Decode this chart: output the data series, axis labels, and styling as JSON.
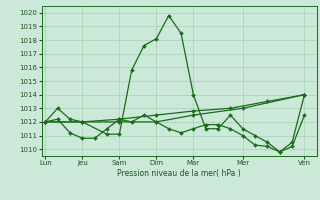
{
  "title": "Pression niveau de la mer( hPa )",
  "ylim": [
    1009.5,
    1020.5
  ],
  "yticks": [
    1010,
    1011,
    1012,
    1013,
    1014,
    1015,
    1016,
    1017,
    1018,
    1019,
    1020
  ],
  "xtick_labels": [
    "Lun",
    "Jeu",
    "Sam",
    "Dim",
    "Mar",
    "Mer",
    "Ven"
  ],
  "xtick_positions": [
    0,
    3,
    6,
    9,
    12,
    16,
    21
  ],
  "xlim": [
    -0.3,
    22
  ],
  "background_color": "#cce8d8",
  "grid_color": "#99ccaa",
  "line_color": "#1a6b1a",
  "line1_x": [
    0,
    1,
    2,
    3,
    5,
    6,
    7,
    8,
    9,
    10,
    11,
    12,
    13,
    14,
    15,
    16,
    17,
    18,
    19,
    20,
    21
  ],
  "line1_y": [
    1012,
    1013,
    1012.2,
    1012,
    1011.1,
    1011.1,
    1015.8,
    1017.6,
    1018.1,
    1019.8,
    1018.5,
    1014,
    1011.5,
    1011.5,
    1012.5,
    1011.5,
    1011,
    1010.5,
    1009.8,
    1010.5,
    1014
  ],
  "line2_x": [
    0,
    1,
    2,
    3,
    4,
    5,
    6,
    7,
    8,
    9,
    10,
    11,
    12,
    13,
    14,
    15,
    16,
    17,
    18,
    19,
    20,
    21
  ],
  "line2_y": [
    1012,
    1012.2,
    1011.2,
    1010.8,
    1010.8,
    1011.5,
    1012.2,
    1012,
    1012.5,
    1012,
    1011.5,
    1011.2,
    1011.5,
    1011.8,
    1011.8,
    1011.5,
    1011,
    1010.3,
    1010.2,
    1009.8,
    1010.2,
    1012.5
  ],
  "line3_x": [
    0,
    3,
    6,
    9,
    12,
    15,
    18,
    21
  ],
  "line3_y": [
    1012,
    1012,
    1012.2,
    1012.5,
    1012.8,
    1013,
    1013.5,
    1014
  ],
  "line4_x": [
    0,
    3,
    6,
    9,
    12,
    16,
    21
  ],
  "line4_y": [
    1012,
    1012,
    1012,
    1012,
    1012.5,
    1013,
    1014
  ]
}
